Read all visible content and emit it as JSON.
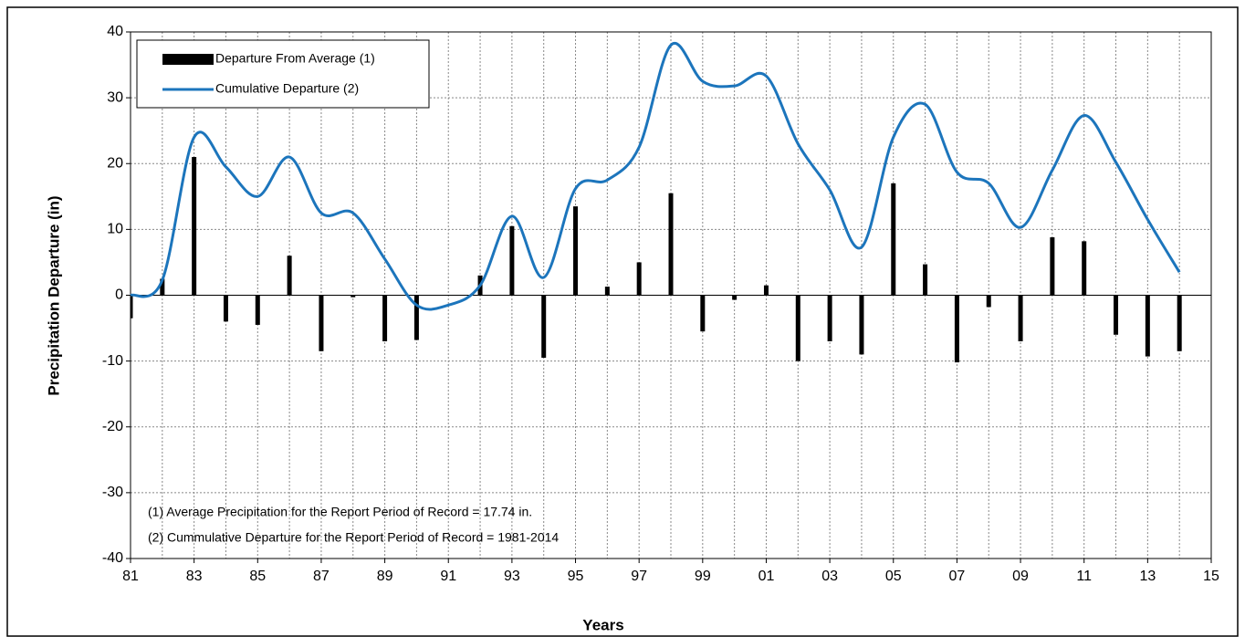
{
  "chart_data": {
    "type": "bar_line",
    "xlabel": "Years",
    "ylabel": "Precipitation Departure (in)",
    "x": [
      1981,
      1982,
      1983,
      1984,
      1985,
      1986,
      1987,
      1988,
      1989,
      1990,
      1991,
      1992,
      1993,
      1994,
      1995,
      1996,
      1997,
      1998,
      1999,
      2000,
      2001,
      2002,
      2003,
      2004,
      2005,
      2006,
      2007,
      2008,
      2009,
      2010,
      2011,
      2012,
      2013,
      2014
    ],
    "series": [
      {
        "name": "Departure From Average (1)",
        "type": "bar",
        "color": "#000000",
        "values": [
          -3.5,
          2.5,
          21,
          -4,
          -4.5,
          6,
          -8.5,
          -0.3,
          -7,
          -6.8,
          0,
          3,
          10.5,
          -9.5,
          13.5,
          1.3,
          5,
          15.5,
          -5.5,
          -0.7,
          1.5,
          -10,
          -7,
          -9,
          17,
          4.7,
          -10.2,
          -1.8,
          -7,
          8.8,
          8.2,
          -6,
          -9.3,
          -8.5
        ]
      },
      {
        "name": "Cumulative Departure (2)",
        "type": "line",
        "color": "#1c75bc",
        "values": [
          0,
          2.3,
          24,
          19.5,
          15,
          21,
          12.5,
          12.5,
          5.5,
          -1.5,
          -1.5,
          1.5,
          12,
          2.7,
          16.2,
          17.5,
          22.5,
          38,
          32.5,
          31.8,
          33.3,
          23,
          16,
          7.3,
          24,
          29,
          18.7,
          17,
          10.3,
          19,
          27.3,
          20.2,
          11.5,
          3.5
        ]
      }
    ],
    "xlim": [
      1981,
      2015
    ],
    "xticks": [
      {
        "value": 1981,
        "label": "81"
      },
      {
        "value": 1983,
        "label": "83"
      },
      {
        "value": 1985,
        "label": "85"
      },
      {
        "value": 1987,
        "label": "87"
      },
      {
        "value": 1989,
        "label": "89"
      },
      {
        "value": 1991,
        "label": "91"
      },
      {
        "value": 1993,
        "label": "93"
      },
      {
        "value": 1995,
        "label": "95"
      },
      {
        "value": 1997,
        "label": "97"
      },
      {
        "value": 1999,
        "label": "99"
      },
      {
        "value": 2001,
        "label": "01"
      },
      {
        "value": 2003,
        "label": "03"
      },
      {
        "value": 2005,
        "label": "05"
      },
      {
        "value": 2007,
        "label": "07"
      },
      {
        "value": 2009,
        "label": "09"
      },
      {
        "value": 2011,
        "label": "11"
      },
      {
        "value": 2013,
        "label": "13"
      },
      {
        "value": 2015,
        "label": "15"
      }
    ],
    "xgrid": [
      1982,
      1983,
      1984,
      1985,
      1986,
      1987,
      1988,
      1989,
      1990,
      1991,
      1992,
      1993,
      1994,
      1995,
      1996,
      1997,
      1998,
      1999,
      2000,
      2001,
      2002,
      2003,
      2004,
      2005,
      2006,
      2007,
      2008,
      2009,
      2010,
      2011,
      2012,
      2013,
      2014
    ],
    "ylim": [
      -40,
      40
    ],
    "yticks": [
      -40,
      -30,
      -20,
      -10,
      0,
      10,
      20,
      30,
      40
    ],
    "grid": true,
    "legend": "upper left",
    "annotations": [
      "(1) Average Precipitation for the Report Period of Record = 17.74 in.",
      "(2) Cummulative Departure for the Report Period of Record = 1981-2014"
    ]
  }
}
